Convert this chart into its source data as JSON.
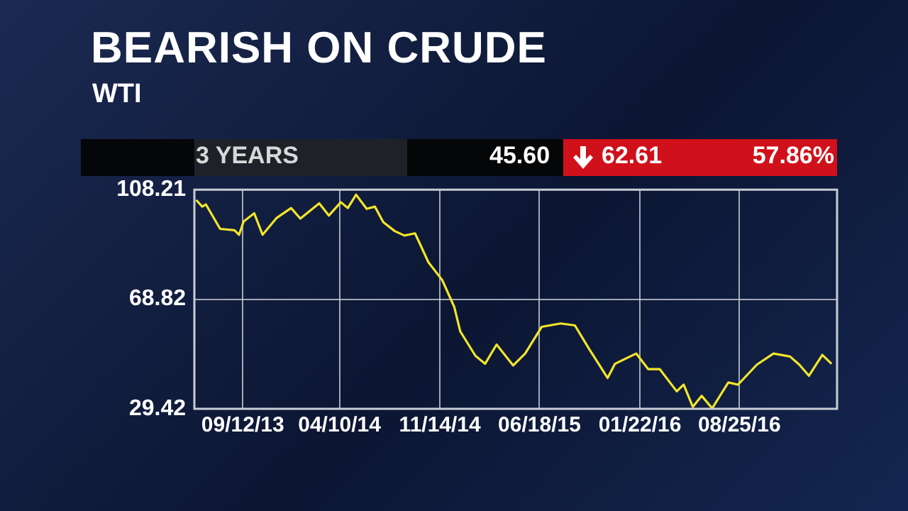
{
  "chart_data": {
    "type": "line",
    "title": "BEARISH ON CRUDE",
    "subtitle": "WTI",
    "annotations": [
      "3 YEARS",
      "45.60",
      "62.61",
      "57.86%"
    ],
    "series": [
      {
        "color": "#f2e52a",
        "x": [
          "2013-06-03",
          "2013-06-16",
          "2013-06-24",
          "2013-07-25",
          "2013-08-25",
          "2013-09-04",
          "2013-09-14",
          "2013-10-07",
          "2013-10-25",
          "2013-11-25",
          "2013-12-26",
          "2014-01-15",
          "2014-02-25",
          "2014-03-18",
          "2014-04-13",
          "2014-04-28",
          "2014-05-16",
          "2014-06-08",
          "2014-06-26",
          "2014-07-14",
          "2014-08-08",
          "2014-08-29",
          "2014-09-21",
          "2014-10-20",
          "2014-11-19",
          "2014-12-15",
          "2014-12-28",
          "2015-01-30",
          "2015-02-20",
          "2015-03-17",
          "2015-04-22",
          "2015-05-18",
          "2015-06-23",
          "2015-08-03",
          "2015-09-03",
          "2015-10-04",
          "2015-11-13",
          "2015-11-29",
          "2016-01-14",
          "2016-02-09",
          "2016-03-05",
          "2016-04-11",
          "2016-04-26",
          "2016-05-16",
          "2016-06-04",
          "2016-06-27",
          "2016-08-01",
          "2016-08-22",
          "2016-10-02",
          "2016-11-07",
          "2016-12-13",
          "2017-01-02",
          "2017-01-23",
          "2017-02-21",
          "2017-03-13"
        ],
        "values": [
          104.5,
          102.1,
          102.9,
          94.1,
          93.6,
          92.0,
          96.8,
          99.7,
          92.0,
          98.1,
          101.6,
          97.8,
          103.3,
          98.9,
          103.7,
          101.6,
          106.4,
          101.3,
          102.1,
          96.5,
          93.3,
          91.7,
          92.5,
          82.1,
          75.7,
          66.1,
          57.3,
          48.5,
          45.6,
          52.5,
          45.0,
          49.3,
          58.9,
          60.1,
          59.4,
          50.9,
          40.5,
          45.6,
          49.3,
          43.7,
          43.7,
          35.7,
          38.1,
          30.1,
          34.1,
          29.6,
          38.9,
          38.1,
          45.3,
          49.3,
          48.2,
          45.3,
          41.3,
          48.8,
          45.6
        ]
      }
    ],
    "xlim": [
      "2013-05-30",
      "2017-03-25"
    ],
    "xticks": [
      {
        "value": "2013-09-12",
        "label": "09/12/13"
      },
      {
        "value": "2014-04-10",
        "label": "04/10/14"
      },
      {
        "value": "2014-11-14",
        "label": "11/14/14"
      },
      {
        "value": "2015-06-18",
        "label": "06/18/15"
      },
      {
        "value": "2016-01-22",
        "label": "01/22/16"
      },
      {
        "value": "2016-08-25",
        "label": "08/25/16"
      }
    ],
    "ylim": [
      29.42,
      108.21
    ],
    "yticks": [
      29.42,
      68.82,
      108.21
    ],
    "grid": true,
    "legend": false,
    "marker": "none",
    "line_style": "solid"
  }
}
